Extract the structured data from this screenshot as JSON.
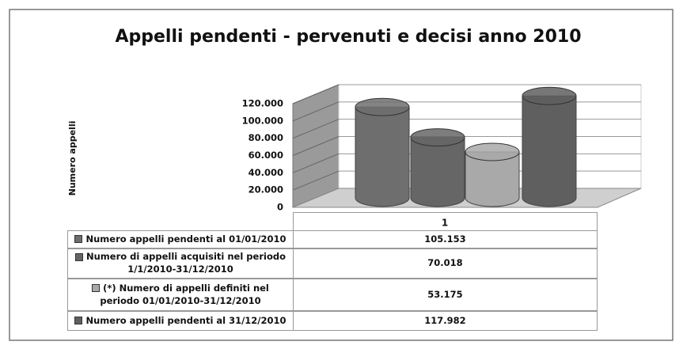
{
  "chart_data": {
    "type": "bar",
    "title": "Appelli pendenti - pervenuti e decisi anno 2010",
    "y_label": "Numero appelli",
    "categories": [
      "1"
    ],
    "series": [
      {
        "name": "Numero appelli pendenti al 01/01/2010",
        "color": "#6e6e6e",
        "values": [
          105153
        ],
        "value_labels": [
          "105.153"
        ]
      },
      {
        "name": "Numero di appelli acquisiti nel periodo 1/1/2010-31/12/2010",
        "color": "#666666",
        "values": [
          70018
        ],
        "value_labels": [
          "70.018"
        ]
      },
      {
        "name": "(*) Numero di appelli definiti nel periodo 01/01/2010-31/12/2010",
        "color": "#a9a9a9",
        "values": [
          53175
        ],
        "value_labels": [
          "53.175"
        ]
      },
      {
        "name": "Numero appelli pendenti al 31/12/2010",
        "color": "#5f5f5f",
        "values": [
          117982
        ],
        "value_labels": [
          "117.982"
        ]
      }
    ],
    "ylim": [
      0,
      120000
    ],
    "yticks": [
      0,
      {
        "value": 20000,
        "label": "20.000"
      },
      {
        "value": 40000,
        "label": "40.000"
      },
      {
        "value": 60000,
        "label": "60.000"
      },
      {
        "value": 80000,
        "label": "80.000"
      },
      {
        "value": 100000,
        "label": "100.000"
      },
      {
        "value": 120000,
        "label": "120.000"
      }
    ],
    "grid": true
  }
}
